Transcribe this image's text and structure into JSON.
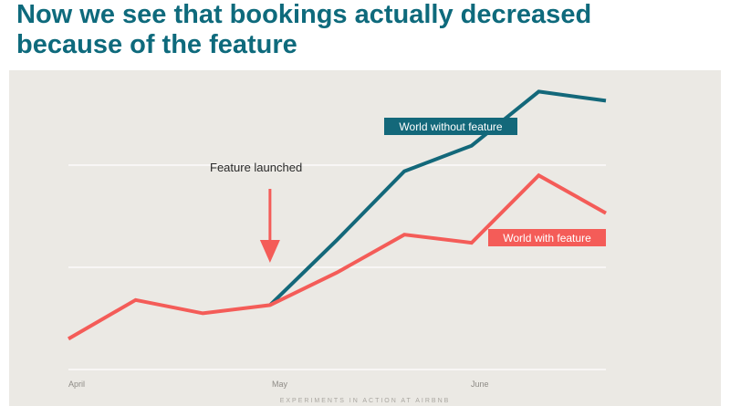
{
  "slide": {
    "title_line1": "Now we see that bookings actually decreased",
    "title_line2": "because of the feature",
    "footer": "EXPERIMENTS IN ACTION AT AIRBNB"
  },
  "colors": {
    "title": "#0e6a7c",
    "without_feature": "#13687a",
    "with_feature": "#f45c58",
    "panel_bg": "#ebe9e4",
    "grid": "#ffffff"
  },
  "chart_data": {
    "type": "line",
    "title": "",
    "xlabel": "",
    "ylabel": "",
    "x_tick_labels": [
      "April",
      "May",
      "June"
    ],
    "grid": true,
    "y_axis_labels": false,
    "annotation": "Feature launched",
    "series": [
      {
        "name": "World with feature",
        "values": [
          0.3,
          0.68,
          0.55,
          0.63,
          0.95,
          1.32,
          1.24,
          1.9,
          1.53
        ]
      },
      {
        "name": "World without feature",
        "values": [
          null,
          null,
          null,
          0.63,
          1.27,
          1.94,
          2.19,
          2.72,
          2.63
        ]
      }
    ]
  }
}
